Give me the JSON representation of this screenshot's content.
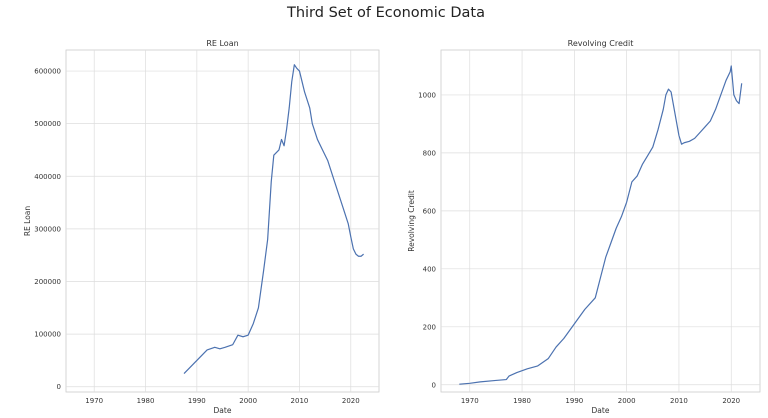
{
  "title": "Third Set of Economic Data",
  "colors": {
    "line": "#4c72b0",
    "grid": "#dddddd",
    "frame": "#cccccc"
  },
  "chart_data": [
    {
      "type": "line",
      "title": "RE Loan",
      "xlabel": "Date",
      "ylabel": "RE Loan",
      "grid": true,
      "xlim": [
        1964.5,
        2025.5
      ],
      "ylim": [
        -10000,
        640000
      ],
      "xticks": [
        1970,
        1980,
        1990,
        2000,
        2010,
        2020
      ],
      "xtick_labels": [
        "1970",
        "1980",
        "1990",
        "2000",
        "2010",
        "2020"
      ],
      "yticks": [
        0,
        100000,
        200000,
        300000,
        400000,
        500000,
        600000
      ],
      "ytick_labels": [
        "0",
        "100000",
        "200000",
        "300000",
        "400000",
        "500000",
        "600000"
      ],
      "series": [
        {
          "name": "RE Loan",
          "x": [
            1987.5,
            1989,
            1990.5,
            1992,
            1993.5,
            1994.5,
            1995.5,
            1997,
            1998,
            1999,
            2000,
            2001,
            2002,
            2003,
            2003.8,
            2004.5,
            2005,
            2006,
            2006.5,
            2007,
            2007.5,
            2008,
            2008.5,
            2009,
            2009.5,
            2010,
            2010.5,
            2011,
            2012,
            2012.5,
            2013.5,
            2014.5,
            2015.5,
            2016.5,
            2017.5,
            2018.5,
            2019.5,
            2020,
            2020.5,
            2021,
            2021.5,
            2022,
            2022.5
          ],
          "y": [
            25000,
            40000,
            55000,
            70000,
            75000,
            72000,
            75000,
            80000,
            98000,
            95000,
            98000,
            120000,
            150000,
            220000,
            280000,
            390000,
            440000,
            450000,
            470000,
            458000,
            490000,
            530000,
            580000,
            612000,
            605000,
            600000,
            580000,
            560000,
            530000,
            500000,
            470000,
            450000,
            430000,
            400000,
            370000,
            340000,
            310000,
            285000,
            262000,
            252000,
            248000,
            248000,
            252000
          ]
        }
      ]
    },
    {
      "type": "line",
      "title": "Revolving Credit",
      "xlabel": "Date",
      "ylabel": "Revolving Credit",
      "grid": true,
      "xlim": [
        1964.5,
        2025.5
      ],
      "ylim": [
        -25,
        1155
      ],
      "xticks": [
        1970,
        1980,
        1990,
        2000,
        2010,
        2020
      ],
      "xtick_labels": [
        "1970",
        "1980",
        "1990",
        "2000",
        "2010",
        "2020"
      ],
      "yticks": [
        0,
        200,
        400,
        600,
        800,
        1000
      ],
      "ytick_labels": [
        "0",
        "200",
        "400",
        "600",
        "800",
        "1000"
      ],
      "series": [
        {
          "name": "Revolving Credit",
          "x": [
            1968,
            1970,
            1972,
            1975,
            1977,
            1977.5,
            1979,
            1981,
            1983,
            1985,
            1986.5,
            1988,
            1990,
            1992,
            1994,
            1995,
            1996,
            1997,
            1998,
            1999,
            2000,
            2001,
            2002,
            2003,
            2004,
            2005,
            2006,
            2007,
            2007.5,
            2008,
            2008.5,
            2009,
            2010,
            2010.5,
            2011,
            2012,
            2013,
            2014,
            2015,
            2016,
            2017,
            2018,
            2019,
            2019.8,
            2020,
            2020.5,
            2021,
            2021.5,
            2022
          ],
          "y": [
            2,
            5,
            10,
            15,
            18,
            30,
            42,
            55,
            65,
            90,
            130,
            160,
            210,
            260,
            300,
            370,
            440,
            490,
            540,
            580,
            630,
            700,
            720,
            760,
            790,
            820,
            880,
            950,
            1000,
            1020,
            1010,
            960,
            860,
            830,
            835,
            840,
            850,
            870,
            890,
            910,
            950,
            1000,
            1050,
            1080,
            1100,
            1000,
            980,
            970,
            1040
          ]
        }
      ]
    }
  ]
}
